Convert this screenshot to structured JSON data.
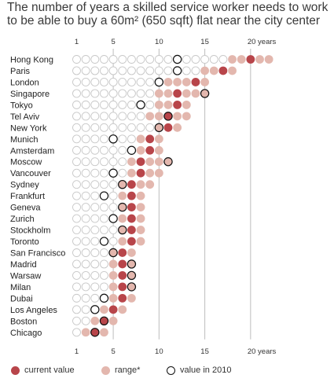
{
  "title_line1": "The number of years a skilled service worker needs to work",
  "title_line2": "to be able to buy a 60m² (650 sqft) flat near the city center",
  "colors": {
    "current": "#b8454a",
    "range": "#e3b7ae",
    "empty_outline": "#c8c8c8",
    "ring_2010": "#111111",
    "gridline": "#bdbdbd"
  },
  "legend": {
    "current_label": "current value",
    "range_label": "range*",
    "ring_label": "value in 2010"
  },
  "chart_data": {
    "type": "dot",
    "xlim": [
      1,
      22
    ],
    "x_ticks": [
      {
        "value": 1,
        "label": "1"
      },
      {
        "value": 5,
        "label": "5"
      },
      {
        "value": 10,
        "label": "10"
      },
      {
        "value": 15,
        "label": "15"
      },
      {
        "value": 20,
        "label": "20 years"
      }
    ],
    "gridlines": [
      5,
      10,
      15,
      20
    ],
    "rows": [
      {
        "city": "Hong Kong",
        "range": [
          18,
          22
        ],
        "current": 20,
        "v2010": 12
      },
      {
        "city": "Paris",
        "range": [
          15,
          18
        ],
        "current": 17,
        "v2010": 12
      },
      {
        "city": "London",
        "range": [
          11,
          15
        ],
        "current": 14,
        "v2010": 10
      },
      {
        "city": "Singapore",
        "range": [
          10,
          15
        ],
        "current": 12,
        "v2010": 15
      },
      {
        "city": "Tokyo",
        "range": [
          10,
          13
        ],
        "current": 12,
        "v2010": 8
      },
      {
        "city": "Tel Aviv",
        "range": [
          9,
          13
        ],
        "current": 11,
        "v2010": 11
      },
      {
        "city": "New York",
        "range": [
          10,
          12
        ],
        "current": 11,
        "v2010": 10
      },
      {
        "city": "Munich",
        "range": [
          8,
          10
        ],
        "current": 9,
        "v2010": 5
      },
      {
        "city": "Amsterdam",
        "range": [
          8,
          10
        ],
        "current": 9,
        "v2010": 7
      },
      {
        "city": "Moscow",
        "range": [
          7,
          11
        ],
        "current": 8,
        "v2010": 11
      },
      {
        "city": "Vancouver",
        "range": [
          7,
          10
        ],
        "current": 8,
        "v2010": 5
      },
      {
        "city": "Sydney",
        "range": [
          6,
          9
        ],
        "current": 7,
        "v2010": 6
      },
      {
        "city": "Frankfurt",
        "range": [
          6,
          8
        ],
        "current": 7,
        "v2010": 4
      },
      {
        "city": "Geneva",
        "range": [
          6,
          8
        ],
        "current": 7,
        "v2010": 6
      },
      {
        "city": "Zurich",
        "range": [
          6,
          8
        ],
        "current": 7,
        "v2010": 5
      },
      {
        "city": "Stockholm",
        "range": [
          6,
          8
        ],
        "current": 7,
        "v2010": 6
      },
      {
        "city": "Toronto",
        "range": [
          6,
          8
        ],
        "current": 7,
        "v2010": 4
      },
      {
        "city": "San Francisco",
        "range": [
          5,
          7
        ],
        "current": 6,
        "v2010": 5
      },
      {
        "city": "Madrid",
        "range": [
          5,
          7
        ],
        "current": 6,
        "v2010": 7
      },
      {
        "city": "Warsaw",
        "range": [
          5,
          7
        ],
        "current": 6,
        "v2010": 7
      },
      {
        "city": "Milan",
        "range": [
          5,
          7
        ],
        "current": 6,
        "v2010": 7
      },
      {
        "city": "Dubai",
        "range": [
          5,
          7
        ],
        "current": 6,
        "v2010": 4
      },
      {
        "city": "Los Angeles",
        "range": [
          4,
          6
        ],
        "current": 5,
        "v2010": 3
      },
      {
        "city": "Boston",
        "range": [
          3,
          5
        ],
        "current": 4,
        "v2010": 4
      },
      {
        "city": "Chicago",
        "range": [
          2,
          4
        ],
        "current": 3,
        "v2010": 3
      }
    ]
  }
}
